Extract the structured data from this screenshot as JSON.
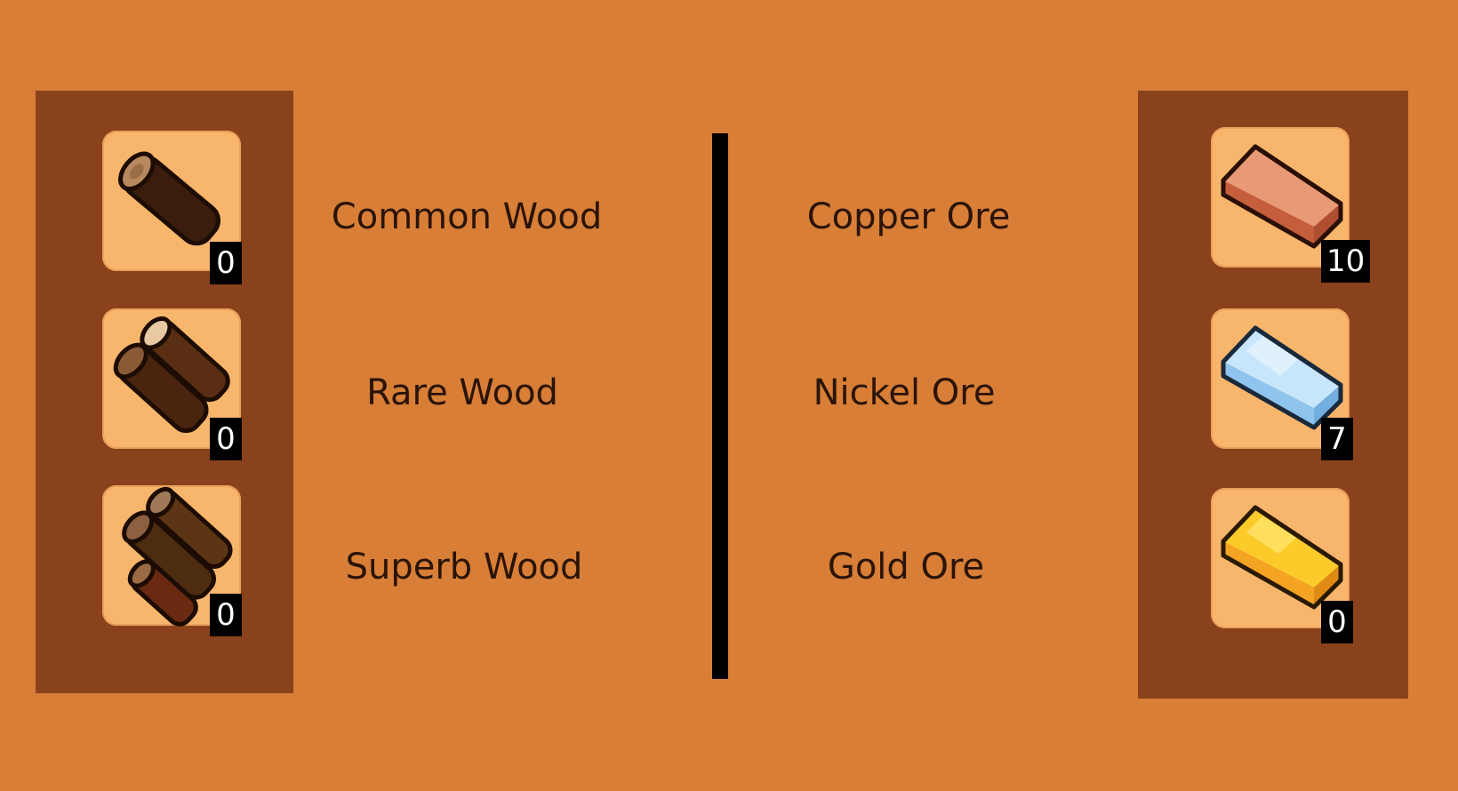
{
  "wood": {
    "items": [
      {
        "name": "Common Wood",
        "count": "0",
        "icon": "common-wood-log-icon"
      },
      {
        "name": "Rare Wood",
        "count": "0",
        "icon": "rare-wood-logs-icon"
      },
      {
        "name": "Superb Wood",
        "count": "0",
        "icon": "superb-wood-logs-icon"
      }
    ]
  },
  "ore": {
    "items": [
      {
        "name": "Copper Ore",
        "count": "10",
        "icon": "copper-ingot-icon",
        "color": "#D9724E"
      },
      {
        "name": "Nickel Ore",
        "count": "7",
        "icon": "nickel-ingot-icon",
        "color": "#A8D4F7"
      },
      {
        "name": "Gold Ore",
        "count": "0",
        "icon": "gold-ingot-icon",
        "color": "#F7B21E"
      }
    ]
  },
  "colors": {
    "background": "#D87E37",
    "panel": "#8A421C",
    "slot": "#F8B66C",
    "divider": "#000000"
  }
}
